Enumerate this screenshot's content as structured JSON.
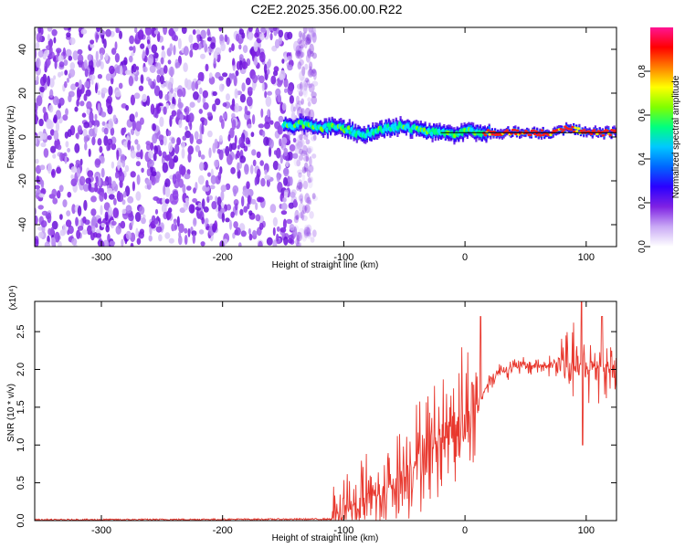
{
  "title": "C2E2.2025.356.00.00.R22",
  "chart_data": [
    {
      "type": "heatmap",
      "xlabel": "Height of straight line (km)",
      "ylabel": "Frequency (Hz)",
      "xlim": [
        -355,
        125
      ],
      "ylim": [
        -50,
        50
      ],
      "x_ticks": [
        -300,
        -200,
        -100,
        0,
        100
      ],
      "y_ticks": [
        -40,
        -20,
        0,
        20,
        40
      ],
      "colorbar": {
        "label": "Normalized spectral amplitude",
        "range": [
          0,
          1
        ],
        "ticks": [
          "0.0",
          "0.2",
          "0.4",
          "0.6",
          "0.8"
        ],
        "colors": [
          "#ffffff",
          "#c9a9f5",
          "#7f22e3",
          "#2b00ff",
          "#0066ff",
          "#00c8ff",
          "#00ff80",
          "#80ff00",
          "#ffff00",
          "#ff8000",
          "#ff0000",
          "#ff1493"
        ]
      },
      "noise_region_x": [
        -355,
        -140
      ],
      "signal_track": {
        "x": [
          -150,
          -135,
          -120,
          -105,
          -95,
          -85,
          -75,
          -65,
          -55,
          -45,
          -35,
          -25,
          -15,
          -5,
          0,
          15,
          40,
          70,
          85,
          95,
          110,
          125
        ],
        "freq": [
          5,
          6,
          4,
          5,
          3,
          1,
          2,
          4,
          5,
          4,
          3,
          2,
          2,
          1,
          3,
          2,
          2,
          2,
          4,
          3,
          2,
          2
        ]
      }
    },
    {
      "type": "line",
      "xlabel": "Height of straight line (km)",
      "ylabel": "SNR (10 * v/v)",
      "y_multiplier": "(x10⁴)",
      "xlim": [
        -355,
        125
      ],
      "ylim": [
        0,
        2.9
      ],
      "x_ticks": [
        -300,
        -200,
        -100,
        0,
        100
      ],
      "y_ticks": [
        "0.0",
        "0.5",
        "1.0",
        "1.5",
        "2.0",
        "2.5"
      ],
      "color": "#e8382e",
      "envelope": {
        "x": [
          -355,
          -110,
          -100,
          -80,
          -60,
          -40,
          -20,
          -10,
          5,
          10,
          20,
          30,
          50,
          70,
          80,
          90,
          100,
          110,
          125
        ],
        "y": [
          0.01,
          0.02,
          0.15,
          0.3,
          0.5,
          0.8,
          1.1,
          1.3,
          1.4,
          1.5,
          1.85,
          2.0,
          2.05,
          2.05,
          2.1,
          2.05,
          2.0,
          2.05,
          2.0
        ]
      },
      "peaks": [
        {
          "x": 13,
          "y": 2.7
        },
        {
          "x": 96,
          "y": 2.9
        },
        {
          "x": 113,
          "y": 2.7
        },
        {
          "x": 97,
          "y": 1.0
        }
      ]
    }
  ]
}
